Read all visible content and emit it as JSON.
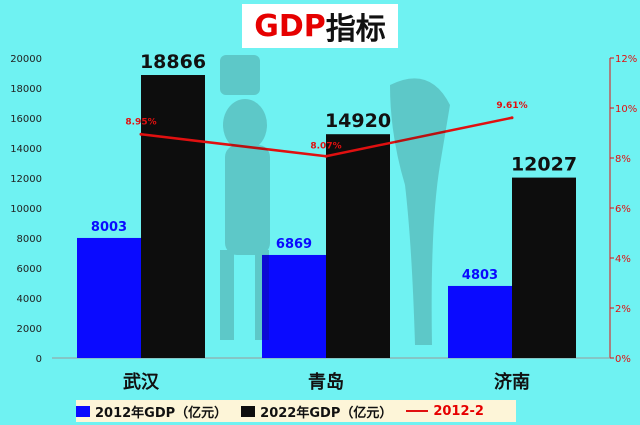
{
  "title": {
    "part1": "GDP",
    "part2": "指标"
  },
  "colors": {
    "series_2012": "#0a0aff",
    "series_2022": "#0d0d0d",
    "growth": "#e01010",
    "background": "#6ff2f2"
  },
  "chart_data": {
    "type": "bar",
    "categories": [
      "武汉",
      "青岛",
      "济南"
    ],
    "series": [
      {
        "name": "2012年GDP（亿元）",
        "values": [
          8003,
          6869,
          4803
        ],
        "labels": [
          "8003",
          "6869",
          "4803"
        ]
      },
      {
        "name": "2022年GDP（亿元）",
        "values": [
          18866,
          14920,
          12027
        ],
        "labels": [
          "18866",
          "14920",
          "12027"
        ]
      }
    ],
    "line_series": {
      "name": "2012-2",
      "values": [
        8.95,
        8.07,
        9.61
      ],
      "labels": [
        "8.95%",
        "8.07%",
        "9.61%"
      ],
      "axis": "right"
    },
    "left_axis": {
      "min": 0,
      "max": 20000,
      "ticks": [
        "0",
        "2000",
        "4000",
        "6000",
        "8000",
        "10000",
        "12000",
        "14000",
        "16000",
        "18000",
        "20000"
      ]
    },
    "right_axis": {
      "min": 0,
      "max": 12,
      "ticks": [
        "0%",
        "2%",
        "4%",
        "6%",
        "8%",
        "10%",
        "12%"
      ]
    },
    "legend_position": "bottom"
  }
}
